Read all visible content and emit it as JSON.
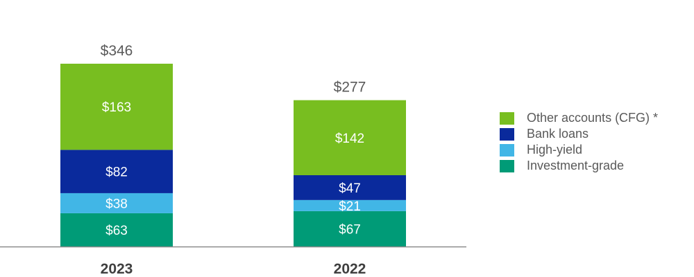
{
  "chart_data": {
    "type": "bar",
    "stacked": true,
    "categories": [
      "2023",
      "2022"
    ],
    "totals": [
      "$346",
      "$277"
    ],
    "series": [
      {
        "name": "Investment-grade",
        "color": "#009B77",
        "values": [
          63,
          67
        ],
        "labels": [
          "$63",
          "$67"
        ]
      },
      {
        "name": "High-yield",
        "color": "#41B6E6",
        "values": [
          38,
          21
        ],
        "labels": [
          "$38",
          "$21"
        ]
      },
      {
        "name": "Bank loans",
        "color": "#0A2A9C",
        "values": [
          82,
          47
        ],
        "labels": [
          "$82",
          "$47"
        ]
      },
      {
        "name": "Other accounts (CFG) *",
        "color": "#78BE20",
        "values": [
          163,
          142
        ],
        "labels": [
          "$163",
          "$142"
        ]
      }
    ],
    "ylim": [
      0,
      346
    ],
    "grid": false,
    "legend_position": "right"
  },
  "legend": {
    "items": [
      {
        "label": "Other accounts (CFG) *",
        "color": "#78BE20"
      },
      {
        "label": "Bank loans",
        "color": "#0A2A9C"
      },
      {
        "label": "High-yield",
        "color": "#41B6E6"
      },
      {
        "label": "Investment-grade",
        "color": "#009B77"
      }
    ]
  }
}
